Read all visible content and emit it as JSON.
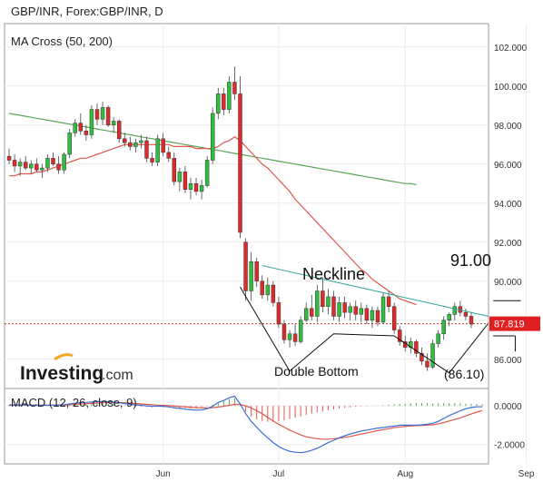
{
  "chart_data": {
    "type": "candlestick",
    "title": "GBP/INR, Forex:GBP/INR, D",
    "price_panel": {
      "indicator_label": "MA Cross (50, 200)",
      "ylim": [
        84.5,
        103.2
      ],
      "yticks": [
        {
          "value": 86,
          "label": "86.000"
        },
        {
          "value": 88,
          "label": "88.000"
        },
        {
          "value": 90,
          "label": "90.000"
        },
        {
          "value": 92,
          "label": "92.000"
        },
        {
          "value": 94,
          "label": "94.000"
        },
        {
          "value": 96,
          "label": "96.000"
        },
        {
          "value": 98,
          "label": "98.000"
        },
        {
          "value": 100,
          "label": "100.000"
        },
        {
          "value": 102,
          "label": "102.000"
        }
      ],
      "last_price": {
        "value": 87.819,
        "label": "87.819"
      },
      "candles": [
        {
          "o": 96.4,
          "h": 96.8,
          "l": 96.0,
          "c": 96.2
        },
        {
          "o": 96.2,
          "h": 96.5,
          "l": 95.6,
          "c": 95.9
        },
        {
          "o": 95.9,
          "h": 96.3,
          "l": 95.4,
          "c": 96.1
        },
        {
          "o": 96.1,
          "h": 96.4,
          "l": 95.7,
          "c": 95.8
        },
        {
          "o": 95.8,
          "h": 96.2,
          "l": 95.5,
          "c": 96.0
        },
        {
          "o": 96.0,
          "h": 96.3,
          "l": 95.6,
          "c": 95.7
        },
        {
          "o": 95.7,
          "h": 96.0,
          "l": 95.3,
          "c": 95.8
        },
        {
          "o": 95.8,
          "h": 96.5,
          "l": 95.6,
          "c": 96.3
        },
        {
          "o": 96.3,
          "h": 96.6,
          "l": 95.9,
          "c": 96.0
        },
        {
          "o": 96.0,
          "h": 96.4,
          "l": 95.5,
          "c": 95.7
        },
        {
          "o": 95.7,
          "h": 96.6,
          "l": 95.5,
          "c": 96.5
        },
        {
          "o": 96.5,
          "h": 97.8,
          "l": 96.3,
          "c": 97.6
        },
        {
          "o": 97.6,
          "h": 98.3,
          "l": 97.4,
          "c": 98.1
        },
        {
          "o": 98.1,
          "h": 98.6,
          "l": 97.5,
          "c": 97.7
        },
        {
          "o": 97.7,
          "h": 98.0,
          "l": 97.2,
          "c": 97.5
        },
        {
          "o": 97.5,
          "h": 99.0,
          "l": 97.3,
          "c": 98.8
        },
        {
          "o": 98.8,
          "h": 99.1,
          "l": 98.0,
          "c": 98.3
        },
        {
          "o": 98.3,
          "h": 99.2,
          "l": 98.0,
          "c": 98.9
        },
        {
          "o": 98.9,
          "h": 99.0,
          "l": 97.9,
          "c": 98.0
        },
        {
          "o": 98.0,
          "h": 98.4,
          "l": 97.6,
          "c": 98.2
        },
        {
          "o": 98.2,
          "h": 98.3,
          "l": 97.1,
          "c": 97.3
        },
        {
          "o": 97.3,
          "h": 97.6,
          "l": 96.9,
          "c": 97.1
        },
        {
          "o": 97.1,
          "h": 97.4,
          "l": 96.7,
          "c": 96.9
        },
        {
          "o": 96.9,
          "h": 97.3,
          "l": 96.6,
          "c": 97.1
        },
        {
          "o": 97.1,
          "h": 97.5,
          "l": 96.8,
          "c": 97.2
        },
        {
          "o": 97.2,
          "h": 97.4,
          "l": 96.1,
          "c": 96.3
        },
        {
          "o": 96.3,
          "h": 96.6,
          "l": 95.9,
          "c": 96.1
        },
        {
          "o": 96.1,
          "h": 97.5,
          "l": 95.9,
          "c": 97.3
        },
        {
          "o": 97.3,
          "h": 97.6,
          "l": 96.4,
          "c": 96.6
        },
        {
          "o": 96.6,
          "h": 96.9,
          "l": 96.1,
          "c": 96.3
        },
        {
          "o": 96.3,
          "h": 96.6,
          "l": 94.9,
          "c": 95.1
        },
        {
          "o": 95.1,
          "h": 95.8,
          "l": 94.6,
          "c": 95.6
        },
        {
          "o": 95.6,
          "h": 95.9,
          "l": 94.5,
          "c": 94.7
        },
        {
          "o": 94.7,
          "h": 95.3,
          "l": 94.2,
          "c": 95.0
        },
        {
          "o": 95.0,
          "h": 95.3,
          "l": 94.4,
          "c": 94.6
        },
        {
          "o": 94.6,
          "h": 95.2,
          "l": 94.2,
          "c": 94.9
        },
        {
          "o": 94.9,
          "h": 96.4,
          "l": 94.8,
          "c": 96.2
        },
        {
          "o": 96.2,
          "h": 98.9,
          "l": 96.0,
          "c": 98.6
        },
        {
          "o": 98.6,
          "h": 99.9,
          "l": 98.3,
          "c": 99.6
        },
        {
          "o": 99.6,
          "h": 99.9,
          "l": 98.5,
          "c": 98.8
        },
        {
          "o": 98.8,
          "h": 100.5,
          "l": 98.6,
          "c": 100.2
        },
        {
          "o": 100.2,
          "h": 101.0,
          "l": 99.3,
          "c": 99.6
        },
        {
          "o": 99.6,
          "h": 100.5,
          "l": 92.2,
          "c": 92.5
        },
        {
          "o": 92.0,
          "h": 92.2,
          "l": 89.0,
          "c": 89.5
        },
        {
          "o": 89.5,
          "h": 91.5,
          "l": 89.0,
          "c": 91.0
        },
        {
          "o": 91.0,
          "h": 91.2,
          "l": 89.7,
          "c": 90.0
        },
        {
          "o": 90.0,
          "h": 90.3,
          "l": 89.1,
          "c": 89.3
        },
        {
          "o": 89.3,
          "h": 90.2,
          "l": 89.0,
          "c": 89.8
        },
        {
          "o": 89.8,
          "h": 90.0,
          "l": 88.7,
          "c": 88.9
        },
        {
          "o": 88.9,
          "h": 89.2,
          "l": 87.6,
          "c": 87.8
        },
        {
          "o": 87.8,
          "h": 88.0,
          "l": 86.8,
          "c": 87.0
        },
        {
          "o": 87.0,
          "h": 87.5,
          "l": 86.6,
          "c": 87.3
        },
        {
          "o": 87.3,
          "h": 87.8,
          "l": 86.7,
          "c": 86.9
        },
        {
          "o": 86.9,
          "h": 88.2,
          "l": 86.8,
          "c": 88.0
        },
        {
          "o": 88.0,
          "h": 88.9,
          "l": 87.9,
          "c": 88.6
        },
        {
          "o": 88.6,
          "h": 89.3,
          "l": 88.0,
          "c": 88.2
        },
        {
          "o": 88.2,
          "h": 89.8,
          "l": 87.9,
          "c": 89.5
        },
        {
          "o": 89.5,
          "h": 90.2,
          "l": 88.4,
          "c": 88.7
        },
        {
          "o": 88.7,
          "h": 89.6,
          "l": 88.3,
          "c": 89.2
        },
        {
          "o": 89.2,
          "h": 89.5,
          "l": 88.0,
          "c": 88.2
        },
        {
          "o": 88.2,
          "h": 89.2,
          "l": 87.9,
          "c": 88.9
        },
        {
          "o": 88.9,
          "h": 89.2,
          "l": 88.1,
          "c": 88.4
        },
        {
          "o": 88.4,
          "h": 88.9,
          "l": 88.0,
          "c": 88.7
        },
        {
          "o": 88.7,
          "h": 89.0,
          "l": 88.0,
          "c": 88.3
        },
        {
          "o": 88.3,
          "h": 88.9,
          "l": 87.9,
          "c": 88.6
        },
        {
          "o": 88.6,
          "h": 88.8,
          "l": 87.8,
          "c": 88.0
        },
        {
          "o": 88.0,
          "h": 88.7,
          "l": 87.6,
          "c": 88.5
        },
        {
          "o": 88.5,
          "h": 88.7,
          "l": 87.7,
          "c": 87.9
        },
        {
          "o": 87.9,
          "h": 89.4,
          "l": 87.8,
          "c": 89.2
        },
        {
          "o": 89.2,
          "h": 89.5,
          "l": 88.4,
          "c": 88.7
        },
        {
          "o": 88.7,
          "h": 88.9,
          "l": 87.3,
          "c": 87.5
        },
        {
          "o": 87.5,
          "h": 87.7,
          "l": 86.7,
          "c": 86.9
        },
        {
          "o": 86.9,
          "h": 87.2,
          "l": 86.4,
          "c": 86.6
        },
        {
          "o": 86.6,
          "h": 87.1,
          "l": 86.3,
          "c": 86.9
        },
        {
          "o": 86.9,
          "h": 87.0,
          "l": 86.1,
          "c": 86.3
        },
        {
          "o": 86.3,
          "h": 86.6,
          "l": 85.7,
          "c": 85.9
        },
        {
          "o": 85.9,
          "h": 86.3,
          "l": 85.4,
          "c": 85.6
        },
        {
          "o": 85.6,
          "h": 87.0,
          "l": 85.5,
          "c": 86.8
        },
        {
          "o": 86.8,
          "h": 87.5,
          "l": 86.6,
          "c": 87.3
        },
        {
          "o": 87.3,
          "h": 88.2,
          "l": 87.0,
          "c": 88.0
        },
        {
          "o": 88.0,
          "h": 88.4,
          "l": 87.7,
          "c": 88.3
        },
        {
          "o": 88.3,
          "h": 88.9,
          "l": 88.0,
          "c": 88.7
        },
        {
          "o": 88.7,
          "h": 89.0,
          "l": 88.2,
          "c": 88.4
        },
        {
          "o": 88.4,
          "h": 88.6,
          "l": 88.0,
          "c": 88.2
        },
        {
          "o": 88.2,
          "h": 88.4,
          "l": 87.6,
          "c": 87.8
        }
      ],
      "ma_50": [
        95.4,
        95.4,
        95.5,
        95.5,
        95.5,
        95.6,
        95.6,
        95.7,
        95.8,
        95.9,
        96.0,
        96.1,
        96.2,
        96.3,
        96.3,
        96.4,
        96.5,
        96.6,
        96.7,
        96.8,
        96.9,
        97.0,
        97.0,
        97.0,
        97.0,
        97.0,
        97.0,
        97.0,
        97.0,
        97.0,
        96.9,
        96.9,
        96.9,
        96.9,
        96.8,
        96.8,
        96.8,
        96.8,
        96.9,
        97.1,
        97.2,
        97.4,
        97.2,
        96.9,
        96.6,
        96.3,
        96.0,
        95.8,
        95.5,
        95.2,
        94.9,
        94.6,
        94.2,
        93.9,
        93.6,
        93.3,
        93.0,
        92.7,
        92.4,
        92.1,
        91.8,
        91.5,
        91.2,
        90.9,
        90.6,
        90.4,
        90.1,
        89.9,
        89.7,
        89.5,
        89.3,
        89.1,
        89.0,
        88.9,
        88.8
      ],
      "ma_200": [
        98.6,
        98.55,
        98.5,
        98.45,
        98.4,
        98.35,
        98.3,
        98.25,
        98.2,
        98.15,
        98.1,
        98.05,
        98.0,
        97.95,
        97.9,
        97.85,
        97.8,
        97.75,
        97.7,
        97.65,
        97.6,
        97.55,
        97.5,
        97.45,
        97.4,
        97.35,
        97.3,
        97.25,
        97.2,
        97.15,
        97.1,
        97.05,
        97.0,
        96.95,
        96.9,
        96.85,
        96.8,
        96.75,
        96.7,
        96.65,
        96.6,
        96.55,
        96.5,
        96.45,
        96.4,
        96.35,
        96.3,
        96.25,
        96.2,
        96.15,
        96.1,
        96.05,
        96.0,
        95.95,
        95.9,
        95.85,
        95.8,
        95.75,
        95.7,
        95.65,
        95.6,
        95.55,
        95.5,
        95.45,
        95.4,
        95.35,
        95.3,
        95.25,
        95.2,
        95.15,
        95.1,
        95.05,
        95.0,
        95.0,
        94.95
      ],
      "annotations": {
        "neckline_label": "Neckline",
        "double_bottom_label": "Double Bottom",
        "target_up_label": "91.00",
        "target_down_label": "(86.10)"
      }
    },
    "macd_panel": {
      "label": "MACD (12, 26, close, 9)",
      "ylim": [
        -3.0,
        0.9
      ],
      "yticks": [
        {
          "value": 0,
          "label": "0.0000"
        },
        {
          "value": -2,
          "label": "-2.0000"
        }
      ],
      "hist": [
        0.05,
        0.06,
        0.07,
        0.07,
        0.06,
        0.05,
        0.04,
        0.05,
        0.06,
        0.07,
        0.08,
        0.1,
        0.12,
        0.13,
        0.12,
        0.13,
        0.12,
        0.12,
        0.1,
        0.08,
        0.05,
        0.02,
        -0.01,
        -0.03,
        -0.04,
        -0.06,
        -0.07,
        -0.05,
        -0.06,
        -0.07,
        -0.1,
        -0.11,
        -0.12,
        -0.13,
        -0.13,
        -0.1,
        -0.03,
        0.08,
        0.2,
        0.25,
        0.35,
        0.4,
        0.05,
        -0.3,
        -0.55,
        -0.7,
        -0.78,
        -0.82,
        -0.83,
        -0.8,
        -0.75,
        -0.68,
        -0.62,
        -0.55,
        -0.48,
        -0.4,
        -0.34,
        -0.28,
        -0.22,
        -0.18,
        -0.14,
        -0.1,
        -0.08,
        -0.05,
        -0.03,
        -0.02,
        0.0,
        0.02,
        0.04,
        0.06,
        0.08,
        0.1,
        0.12,
        0.14,
        0.15,
        0.15,
        0.14,
        0.12,
        0.13,
        0.14,
        0.15,
        0.14,
        0.13,
        0.12,
        0.11,
        0.1,
        0.09
      ],
      "macd": [
        0.05,
        0.05,
        0.05,
        0.04,
        0.04,
        0.03,
        0.03,
        0.03,
        0.04,
        0.05,
        0.07,
        0.1,
        0.14,
        0.17,
        0.18,
        0.2,
        0.22,
        0.23,
        0.22,
        0.2,
        0.16,
        0.12,
        0.08,
        0.05,
        0.03,
        0.0,
        -0.02,
        -0.01,
        -0.02,
        -0.05,
        -0.1,
        -0.13,
        -0.17,
        -0.2,
        -0.22,
        -0.21,
        -0.15,
        -0.02,
        0.18,
        0.28,
        0.42,
        0.5,
        0.1,
        -0.4,
        -0.8,
        -1.1,
        -1.4,
        -1.65,
        -1.9,
        -2.1,
        -2.25,
        -2.35,
        -2.4,
        -2.42,
        -2.38,
        -2.3,
        -2.2,
        -2.05,
        -1.9,
        -1.78,
        -1.65,
        -1.55,
        -1.45,
        -1.38,
        -1.3,
        -1.25,
        -1.2,
        -1.15,
        -1.12,
        -1.08,
        -1.05,
        -1.0,
        -1.0,
        -1.0,
        -1.0,
        -0.98,
        -0.95,
        -0.9,
        -0.8,
        -0.65,
        -0.5,
        -0.38,
        -0.25,
        -0.15,
        -0.08,
        -0.05,
        -0.05
      ],
      "signal": [
        0.03,
        0.03,
        0.04,
        0.04,
        0.04,
        0.04,
        0.04,
        0.04,
        0.04,
        0.04,
        0.05,
        0.06,
        0.08,
        0.1,
        0.11,
        0.13,
        0.15,
        0.16,
        0.17,
        0.17,
        0.17,
        0.16,
        0.14,
        0.12,
        0.1,
        0.08,
        0.06,
        0.04,
        0.03,
        0.01,
        -0.01,
        -0.03,
        -0.05,
        -0.07,
        -0.09,
        -0.1,
        -0.11,
        -0.09,
        -0.06,
        -0.02,
        0.03,
        0.08,
        0.08,
        0.0,
        -0.1,
        -0.25,
        -0.4,
        -0.6,
        -0.78,
        -0.95,
        -1.1,
        -1.25,
        -1.38,
        -1.5,
        -1.6,
        -1.65,
        -1.7,
        -1.72,
        -1.72,
        -1.7,
        -1.67,
        -1.63,
        -1.58,
        -1.52,
        -1.46,
        -1.4,
        -1.34,
        -1.28,
        -1.23,
        -1.18,
        -1.13,
        -1.09,
        -1.06,
        -1.04,
        -1.02,
        -1.01,
        -1.0,
        -0.98,
        -0.93,
        -0.86,
        -0.78,
        -0.7,
        -0.62,
        -0.52,
        -0.42,
        -0.32,
        -0.24
      ]
    },
    "x_axis": {
      "ticks": [
        {
          "index": 28,
          "label": "Jun"
        },
        {
          "index": 49,
          "label": "Jul"
        },
        {
          "index": 72,
          "label": "Aug"
        },
        {
          "index": 94,
          "label": "Sep"
        }
      ]
    },
    "branding": {
      "name": "Investing",
      "suffix": ".com"
    }
  }
}
